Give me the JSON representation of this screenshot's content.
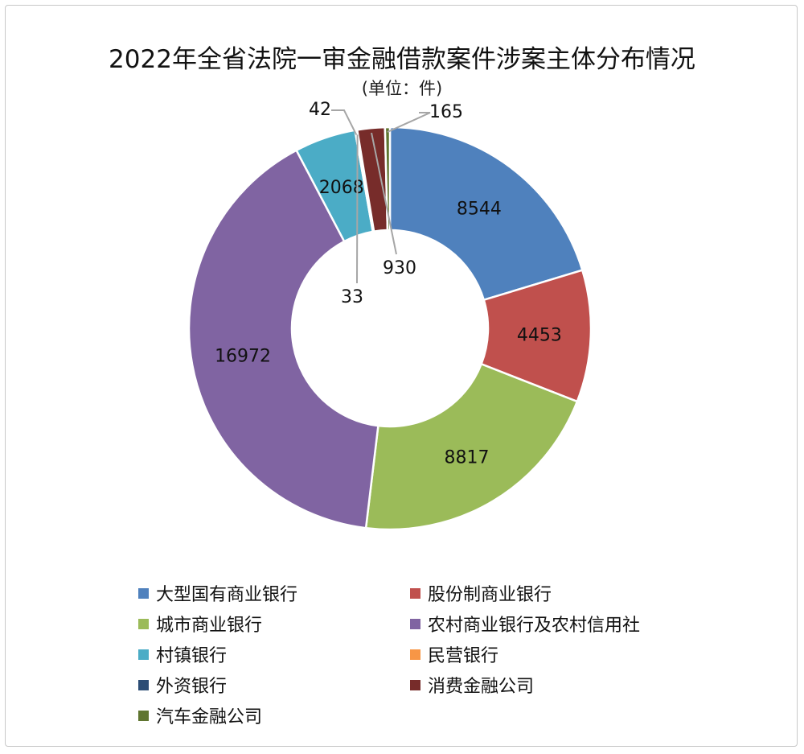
{
  "chart_data": {
    "type": "pie",
    "donut": true,
    "title": "2022年全省法院一审金融借款案件涉案主体分布情况",
    "subtitle": "(单位：件)",
    "legend_position": "bottom",
    "categories": [
      "大型国有商业银行",
      "股份制商业银行",
      "城市商业银行",
      "农村商业银行及农村信用社",
      "村镇银行",
      "民营银行",
      "外资银行",
      "消费金融公司",
      "汽车金融公司"
    ],
    "values": [
      8544,
      4453,
      8817,
      16972,
      2068,
      42,
      33,
      930,
      165
    ],
    "colors": [
      "#4f81bd",
      "#c0504d",
      "#9bbb59",
      "#8064a2",
      "#4bacc6",
      "#f79646",
      "#2c4d75",
      "#772c2a",
      "#5f7530"
    ]
  }
}
